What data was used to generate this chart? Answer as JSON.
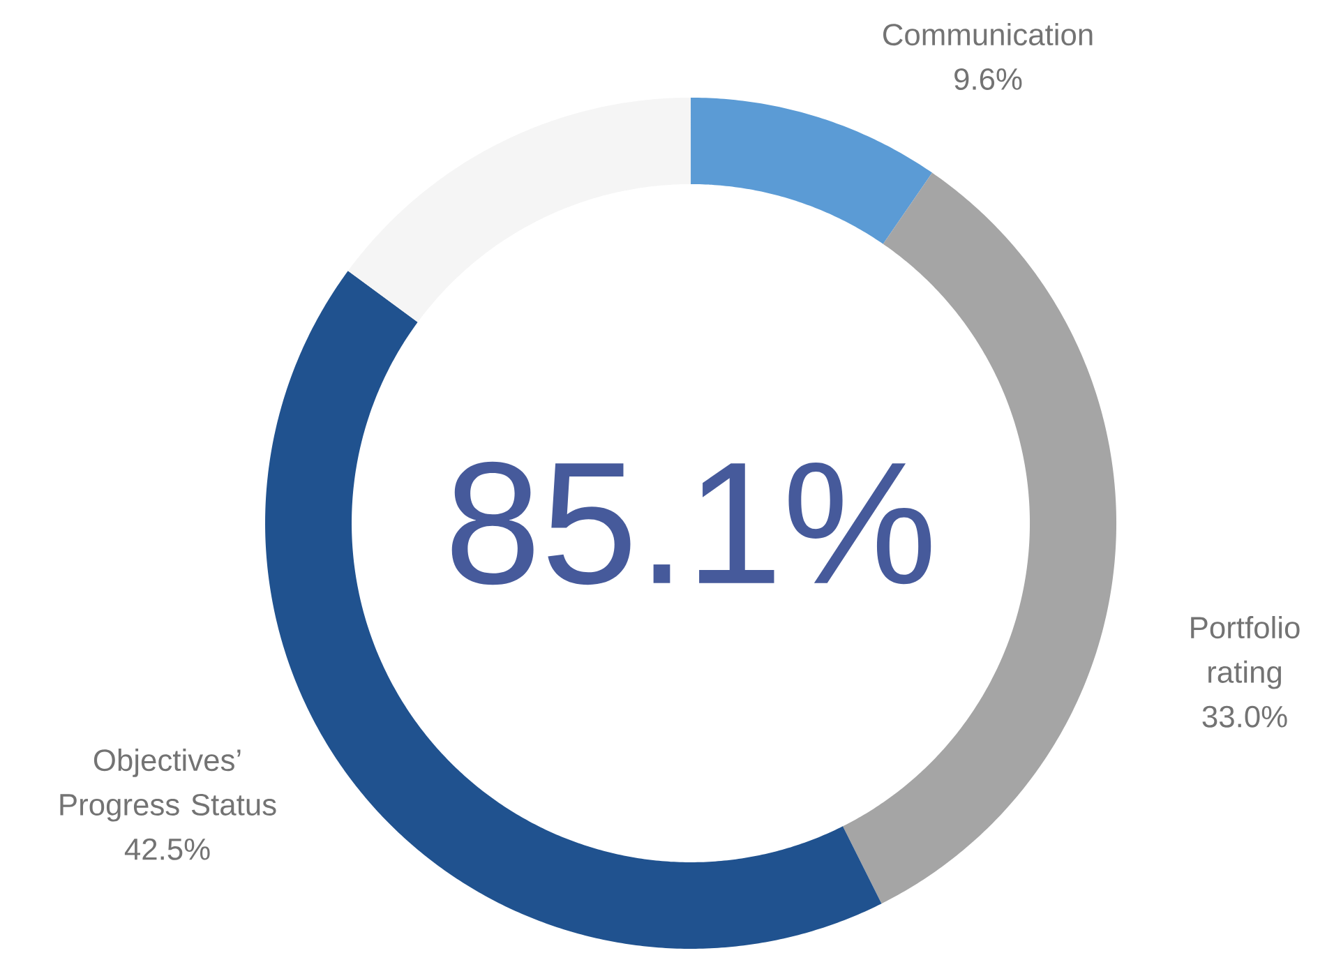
{
  "chart_data": {
    "type": "donut",
    "categories": [
      "Communication",
      "Portfolio rating",
      "Objectives’ Progress Status",
      null
    ],
    "values": [
      9.6,
      33.0,
      42.5,
      14.9
    ],
    "colors": [
      "#5b9bd5",
      "#a5a5a5",
      "#20528f",
      "#f5f5f5"
    ],
    "value_labels": [
      "9.6%",
      "33.0%",
      "42.5%",
      null
    ],
    "annotations": [
      "85.1%"
    ]
  }
}
